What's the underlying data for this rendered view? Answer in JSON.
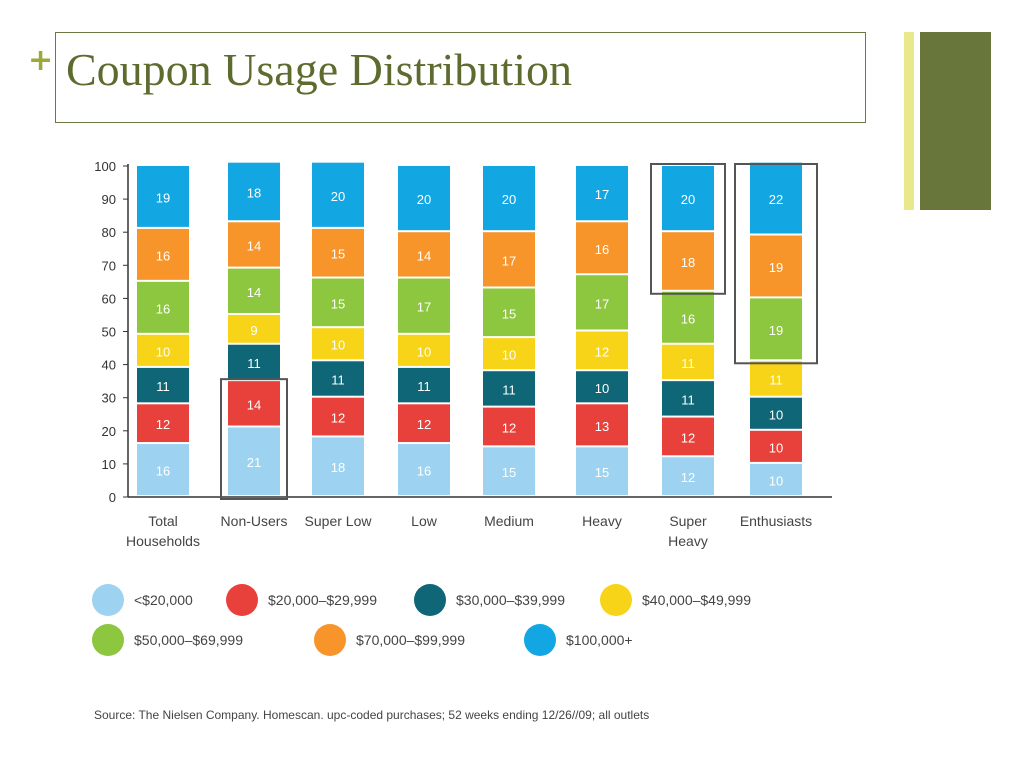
{
  "slide": {
    "plus": "+",
    "title": "Coupon Usage Distribution",
    "source": "Source: The Nielsen Company. Homescan. upc-coded purchases; 52 weeks ending 12/26//09; all outlets"
  },
  "chart_data": {
    "type": "bar",
    "stacked": true,
    "title": "",
    "xlabel": "",
    "ylabel": "",
    "ylim": [
      0,
      100
    ],
    "yticks": [
      0,
      10,
      20,
      30,
      40,
      50,
      60,
      70,
      80,
      90,
      100
    ],
    "categories": [
      "Total Households",
      "Non-Users",
      "Super Low",
      "Low",
      "Medium",
      "Heavy",
      "Super Heavy",
      "Enthusiasts"
    ],
    "series": [
      {
        "name": "<$20,000",
        "color": "#9dd3f0",
        "values": [
          16,
          21,
          18,
          16,
          15,
          15,
          12,
          10
        ]
      },
      {
        "name": "$20,000–$29,999",
        "color": "#e8403a",
        "values": [
          12,
          14,
          12,
          12,
          12,
          13,
          12,
          10
        ]
      },
      {
        "name": "$30,000–$39,999",
        "color": "#0e6677",
        "values": [
          11,
          11,
          11,
          11,
          11,
          10,
          11,
          10
        ]
      },
      {
        "name": "$40,000–$49,999",
        "color": "#f7d417",
        "values": [
          10,
          9,
          10,
          10,
          10,
          12,
          11,
          11
        ]
      },
      {
        "name": "$50,000–$69,999",
        "color": "#8dc63f",
        "values": [
          16,
          14,
          15,
          17,
          15,
          17,
          16,
          19
        ]
      },
      {
        "name": "$70,000–$99,999",
        "color": "#f7952b",
        "values": [
          16,
          14,
          15,
          14,
          17,
          16,
          18,
          19
        ]
      },
      {
        "name": "$100,000+",
        "color": "#12a7e3",
        "values": [
          19,
          18,
          20,
          20,
          20,
          17,
          20,
          22
        ]
      }
    ],
    "highlights": [
      {
        "category": "Non-Users",
        "from": 0,
        "to": 35
      },
      {
        "category": "Super Heavy",
        "from": 62,
        "to": 100
      },
      {
        "category": "Enthusiasts",
        "from": 41,
        "to": 100
      }
    ],
    "legend_position": "bottom"
  }
}
